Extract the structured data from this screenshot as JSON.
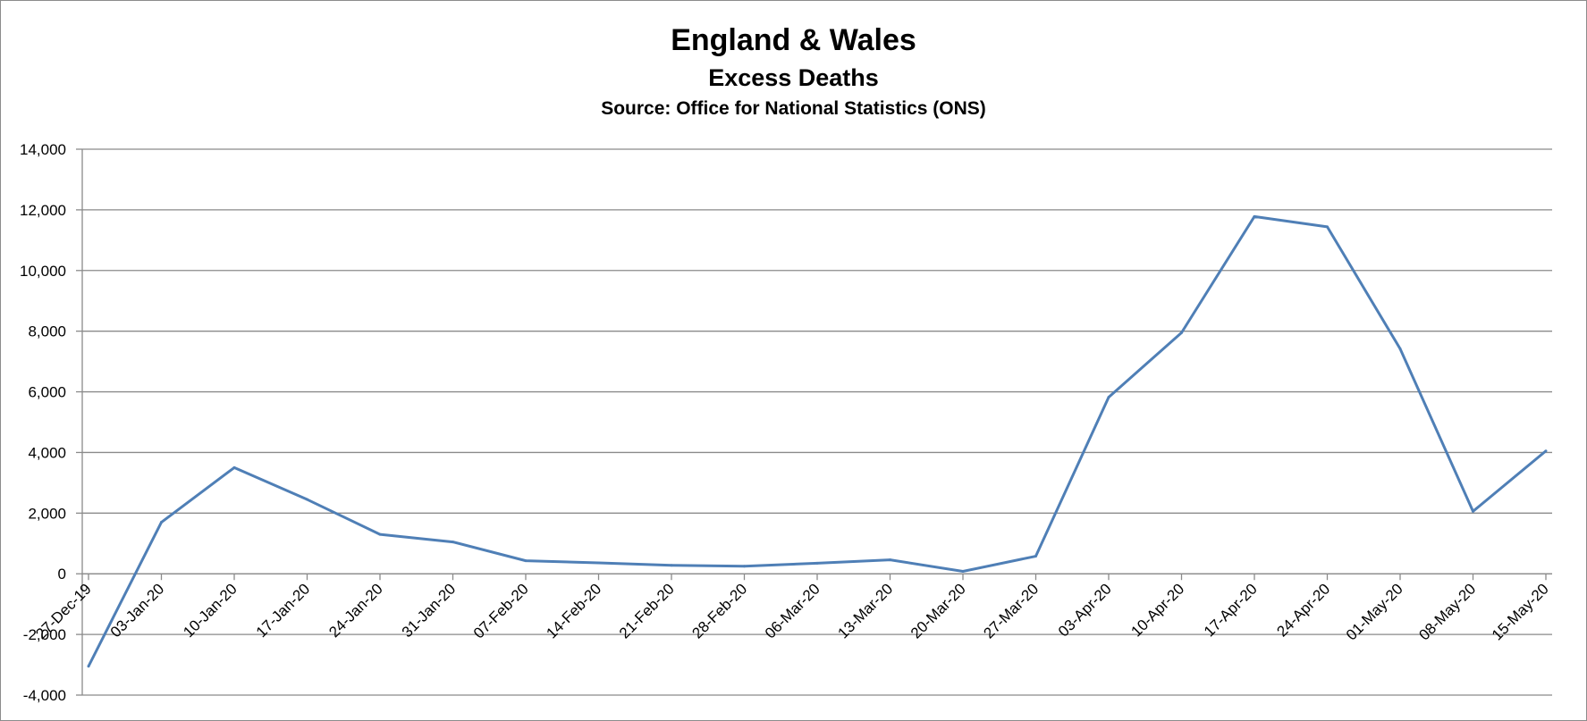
{
  "chart_data": {
    "type": "line",
    "title": "England & Wales",
    "subtitle": "Excess Deaths",
    "source": "Source: Office for National Statistics (ONS)",
    "xlabel": "",
    "ylabel": "",
    "ylim": [
      -4000,
      14000
    ],
    "y_ticks": [
      -4000,
      -2000,
      0,
      2000,
      4000,
      6000,
      8000,
      10000,
      12000,
      14000
    ],
    "y_tick_labels": [
      "-4,000",
      "-2,000",
      "0",
      "2,000",
      "4,000",
      "6,000",
      "8,000",
      "10,000",
      "12,000",
      "14,000"
    ],
    "grid": true,
    "legend": "none",
    "line_color": "#4f7fb6",
    "categories": [
      "27-Dec-19",
      "03-Jan-20",
      "10-Jan-20",
      "17-Jan-20",
      "24-Jan-20",
      "31-Jan-20",
      "07-Feb-20",
      "14-Feb-20",
      "21-Feb-20",
      "28-Feb-20",
      "06-Mar-20",
      "13-Mar-20",
      "20-Mar-20",
      "27-Mar-20",
      "03-Apr-20",
      "10-Apr-20",
      "17-Apr-20",
      "24-Apr-20",
      "01-May-20",
      "08-May-20",
      "15-May-20"
    ],
    "series": [
      {
        "values": [
          -3050,
          1700,
          3500,
          2450,
          1300,
          1050,
          430,
          360,
          280,
          250,
          350,
          460,
          80,
          580,
          5820,
          7950,
          11780,
          11440,
          7420,
          2060,
          4050
        ]
      }
    ]
  }
}
